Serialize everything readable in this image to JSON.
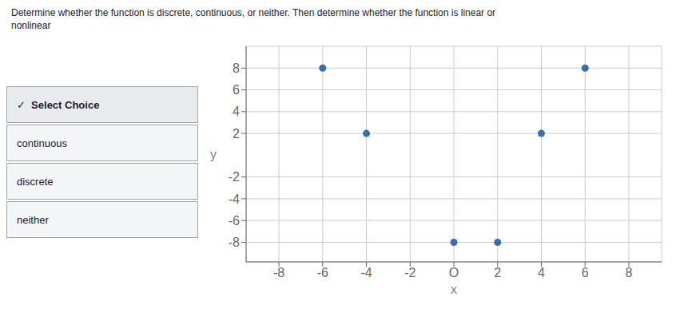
{
  "chart_data": {
    "type": "scatter",
    "title": "Determine whether the function is discrete, continuous, or neither. Then determine whether the function is linear or\nnonlinear",
    "annotations": [
      "✓  Select Choice",
      "continuous",
      "discrete",
      "neither"
    ],
    "x_label": "x",
    "y_label": "y",
    "x": [
      -6,
      -4,
      0,
      2,
      4,
      6
    ],
    "values": [
      8,
      2,
      -8,
      -8,
      2,
      8
    ],
    "color": "#3a6ea8",
    "xlim": [
      -9.5,
      9.5
    ],
    "ylim": [
      -9.8,
      10.0
    ],
    "xticks": [
      -8,
      -6,
      -4,
      -2,
      {
        "value": 0,
        "label": "O"
      },
      2,
      4,
      6,
      8
    ],
    "yticks": [
      -8,
      -6,
      -4,
      -2,
      2,
      4,
      6,
      8
    ],
    "grid": true
  }
}
